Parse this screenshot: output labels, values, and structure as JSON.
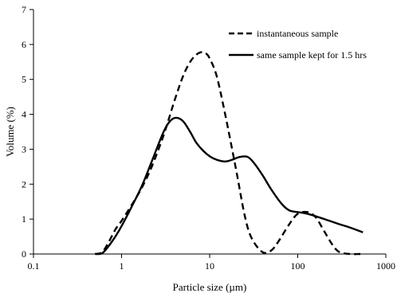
{
  "chart_data": {
    "type": "line",
    "xscale": "log",
    "xlabel": "Particle size (µm)",
    "ylabel": "Volume (%)",
    "xlim": [
      0.1,
      1000
    ],
    "ylim": [
      0,
      7
    ],
    "xticks": [
      "0.1",
      "1",
      "10",
      "100",
      "1000"
    ],
    "yticks": [
      "0",
      "1",
      "2",
      "3",
      "4",
      "5",
      "6",
      "7"
    ],
    "grid": false,
    "legend_position": "top-right",
    "series": [
      {
        "name": "instantaneous sample",
        "style": "dashed",
        "color": "#000000",
        "x": [
          0.5,
          0.6,
          0.7,
          0.85,
          1.0,
          1.3,
          1.7,
          2.2,
          3.0,
          4.0,
          5.0,
          6.0,
          7.0,
          8.0,
          9.0,
          10.0,
          12.0,
          15.0,
          20.0,
          25.0,
          30.0,
          40.0,
          50.0,
          60.0,
          80.0,
          100.0,
          130.0,
          160.0,
          200.0,
          250.0,
          300.0,
          400.0,
          500.0,
          550.0
        ],
        "y": [
          0.0,
          0.05,
          0.3,
          0.7,
          0.95,
          1.4,
          1.9,
          2.5,
          3.4,
          4.4,
          5.1,
          5.5,
          5.7,
          5.78,
          5.75,
          5.6,
          5.1,
          4.0,
          2.4,
          1.1,
          0.45,
          0.05,
          0.1,
          0.35,
          0.85,
          1.15,
          1.2,
          1.05,
          0.65,
          0.25,
          0.05,
          0.0,
          0.0,
          0.0
        ]
      },
      {
        "name": "same sample kept for 1.5 hrs",
        "style": "solid",
        "color": "#000000",
        "x": [
          0.5,
          0.6,
          0.7,
          0.85,
          1.0,
          1.3,
          1.7,
          2.2,
          3.0,
          3.6,
          4.2,
          5.0,
          6.0,
          7.0,
          8.5,
          10.0,
          12.0,
          15.0,
          18.0,
          22.0,
          27.0,
          32.0,
          40.0,
          50.0,
          65.0,
          80.0,
          100.0,
          130.0,
          200.0,
          300.0,
          400.0,
          550.0
        ],
        "y": [
          0.0,
          0.02,
          0.2,
          0.5,
          0.8,
          1.35,
          1.95,
          2.65,
          3.5,
          3.82,
          3.9,
          3.8,
          3.5,
          3.2,
          2.95,
          2.8,
          2.7,
          2.65,
          2.7,
          2.78,
          2.78,
          2.6,
          2.25,
          1.85,
          1.45,
          1.25,
          1.2,
          1.15,
          1.0,
          0.85,
          0.75,
          0.62
        ]
      }
    ]
  }
}
